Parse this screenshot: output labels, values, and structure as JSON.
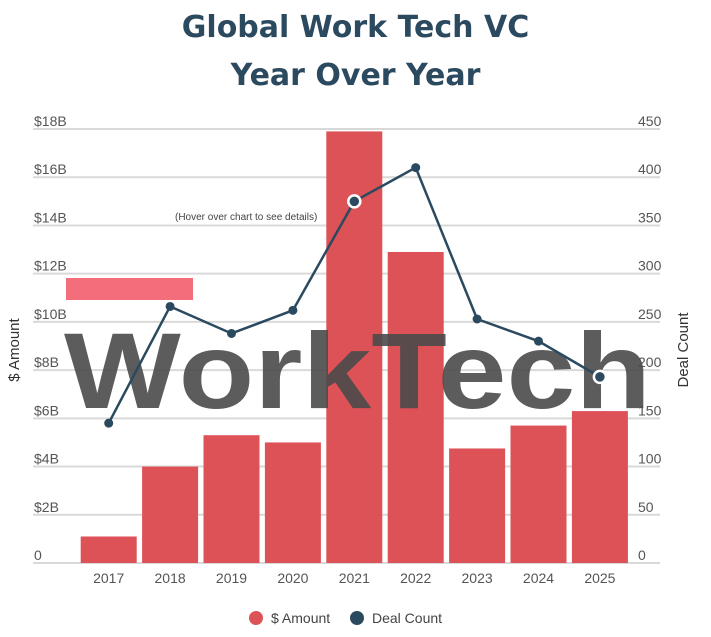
{
  "chart_data": {
    "type": "bar",
    "title_lines": [
      "Global Work Tech VC",
      "Year Over Year"
    ],
    "categories": [
      "2017",
      "2018",
      "2019",
      "2020",
      "2021",
      "2022",
      "2023",
      "2024",
      "2025"
    ],
    "series": [
      {
        "name": "$ Amount",
        "type": "bar",
        "axis": "left",
        "color": "#dd5257",
        "values": [
          1.1,
          4.0,
          5.3,
          5.0,
          17.9,
          12.9,
          4.75,
          5.7,
          6.3
        ]
      },
      {
        "name": "Deal Count",
        "type": "line",
        "axis": "right",
        "color": "#2b4a5f",
        "values": [
          145,
          266,
          238,
          262,
          375,
          410,
          253,
          230,
          193
        ]
      }
    ],
    "y_left": {
      "label": "$ Amount",
      "ylim": [
        0,
        18
      ],
      "ticks": [
        0,
        2,
        4,
        6,
        8,
        10,
        12,
        14,
        16,
        18
      ],
      "tick_labels": [
        "0",
        "$2B",
        "$4B",
        "$6B",
        "$8B",
        "$10B",
        "$12B",
        "$14B",
        "$16B",
        "$18B"
      ]
    },
    "y_right": {
      "label": "Deal Count",
      "ylim": [
        0,
        450
      ],
      "ticks": [
        0,
        50,
        100,
        150,
        200,
        250,
        300,
        350,
        400,
        450
      ],
      "tick_labels": [
        "0",
        "50",
        "100",
        "150",
        "200",
        "250",
        "300",
        "350",
        "400",
        "450"
      ]
    },
    "grid": true,
    "legend_position": "bottom",
    "hover_hint": "(Hover over chart to see details)",
    "watermark_text": "WorkTech",
    "colors": {
      "bar": "#dd5257",
      "line": "#2b4a5f",
      "grid": "#d9d9d9",
      "watermark": "#4a4a4a",
      "watermark_band": "#f46d7a",
      "axis_text": "#555555",
      "title": "#2b4a5f"
    }
  }
}
